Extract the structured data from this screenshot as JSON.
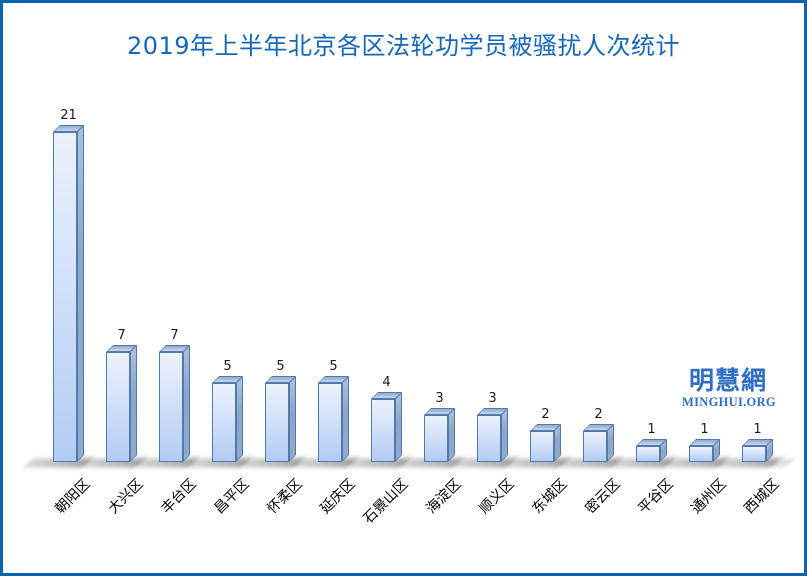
{
  "page": {
    "frame_color": "#0d63b2",
    "background": "#ffffff"
  },
  "header": {
    "title": "2019年上半年北京各区法轮功学员被骚扰人次统计",
    "title_color": "#1568b8"
  },
  "watermark": {
    "name_cn": "明慧網",
    "name_en": "MINGHUI.ORG",
    "color": "#2e6fc2"
  },
  "chart_data": {
    "type": "bar",
    "style": "3d-column",
    "title": "2019年上半年北京各区法轮功学员被骚扰人次统计",
    "categories": [
      "朝阳区",
      "大兴区",
      "丰台区",
      "昌平区",
      "怀柔区",
      "延庆区",
      "石景山区",
      "海淀区",
      "顺义区",
      "东城区",
      "密云区",
      "平谷区",
      "通州区",
      "西城区"
    ],
    "values": [
      21,
      7,
      7,
      5,
      5,
      5,
      4,
      3,
      3,
      2,
      2,
      1,
      1,
      1
    ],
    "xlabel": "",
    "ylabel": "",
    "ylim": [
      0,
      21
    ],
    "grid": false,
    "legend": false,
    "data_labels": true,
    "x_tick_rotation_deg": 45,
    "bar_colors": {
      "front_top": "#ecf2fd",
      "front_bottom": "#b2ccf4",
      "side": "#8da5c7",
      "top": "#a6b8d4",
      "outline": "#4e7ab2"
    }
  }
}
